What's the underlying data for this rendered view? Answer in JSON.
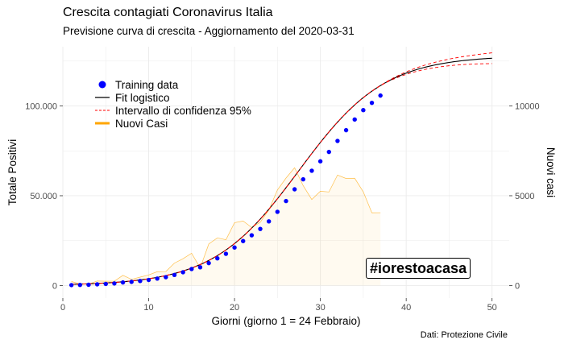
{
  "chart_data": {
    "type": "line",
    "title": "Crescita contagiati Coronavirus Italia",
    "subtitle": "Previsione curva di crescita - Aggiornamento del 2020-03-31",
    "caption": "Dati: Protezione Civile",
    "annotation": "#iorestoacasa",
    "xlabel": "Giorni (giorno 1 = 24 Febbraio)",
    "ylabel": "Totale Positivi",
    "ylabel_right": "Nuovi casi",
    "xlim": [
      0,
      52
    ],
    "ylim": [
      -7000,
      133000
    ],
    "ylim_right": [
      -700,
      13300
    ],
    "x_ticks": [
      0,
      10,
      20,
      30,
      40,
      50
    ],
    "x_tick_labels": [
      "0",
      "10",
      "20",
      "30",
      "40",
      "50"
    ],
    "y_ticks": [
      0,
      50000,
      100000
    ],
    "y_tick_labels": [
      "0",
      "50.000",
      "100.000"
    ],
    "y_ticks_right": [
      0,
      5000,
      10000
    ],
    "y_tick_labels_right": [
      "0",
      "5000",
      "10000"
    ],
    "grid": true,
    "legend_position": "top-left",
    "legend": [
      {
        "label": "Training data",
        "color": "#0000ff",
        "kind": "point"
      },
      {
        "label": "Fit logistico",
        "color": "#000000",
        "kind": "line"
      },
      {
        "label": "Intervallo di confidenza 95%",
        "color": "#ff0000",
        "kind": "dashed"
      },
      {
        "label": "Nuovi Casi",
        "color": "#ffa500",
        "kind": "thick"
      }
    ],
    "fit": {
      "K": 128000,
      "x0": 27.5,
      "r": 0.2
    },
    "ci_width": [
      0,
      3000
    ],
    "series": [
      {
        "name": "Training data",
        "x": [
          1,
          2,
          3,
          4,
          5,
          6,
          7,
          8,
          9,
          10,
          11,
          12,
          13,
          14,
          15,
          16,
          17,
          18,
          19,
          20,
          21,
          22,
          23,
          24,
          25,
          26,
          27,
          28,
          29,
          30,
          31,
          32,
          33,
          34,
          35,
          36,
          37
        ],
        "values": [
          229,
          322,
          400,
          650,
          888,
          1128,
          1694,
          2036,
          2502,
          3089,
          3858,
          4636,
          5883,
          7375,
          9172,
          10149,
          12462,
          15113,
          17660,
          21157,
          24747,
          27980,
          31506,
          35713,
          41035,
          47021,
          53578,
          59138,
          63927,
          69176,
          74386,
          80539,
          86498,
          92472,
          97689,
          101739,
          105792
        ]
      },
      {
        "name": "Nuovi Casi",
        "x": [
          1,
          2,
          3,
          4,
          5,
          6,
          7,
          8,
          9,
          10,
          11,
          12,
          13,
          14,
          15,
          16,
          17,
          18,
          19,
          20,
          21,
          22,
          23,
          24,
          25,
          26,
          27,
          28,
          29,
          30,
          31,
          32,
          33,
          34,
          35,
          36,
          37
        ],
        "values": [
          221,
          93,
          78,
          250,
          238,
          240,
          566,
          342,
          466,
          587,
          769,
          778,
          1247,
          1492,
          1797,
          977,
          2313,
          2651,
          2547,
          3497,
          3590,
          3233,
          3526,
          4207,
          5322,
          5986,
          6557,
          5560,
          4789,
          5249,
          5210,
          6153,
          5959,
          5974,
          5217,
          4050,
          4053
        ]
      }
    ]
  }
}
